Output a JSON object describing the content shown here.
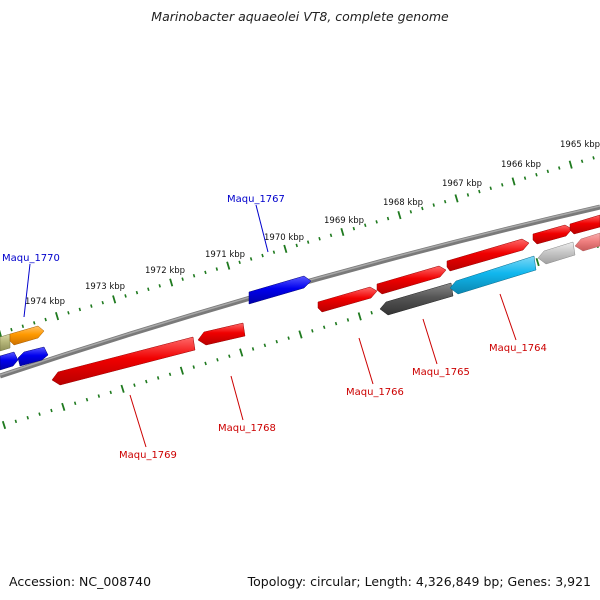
{
  "title": "Marinobacter aquaeolei VT8, complete genome",
  "footer": {
    "accession": "Accession: NC_008740",
    "summary": "Topology: circular; Length: 4,326,849 bp; Genes: 3,921"
  },
  "colors": {
    "backbone": "#7a7a7a",
    "tick": "#1f7a1f",
    "forward_label": "#0000cc",
    "reverse_label": "#cc0000",
    "red_gene": "#f00000",
    "blue_gene": "#0000ee",
    "dark_gene": "#555555",
    "cyan_gene": "#11b7ee",
    "orange_gene": "#ff9900",
    "olive_gene": "#b7b77a",
    "gray_gene": "#c8c8c8",
    "pink_gene": "#f08080"
  },
  "kbp_labels": [
    "1965 kbp",
    "1966 kbp",
    "1967 kbp",
    "1968 kbp",
    "1969 kbp",
    "1970 kbp",
    "1971 kbp",
    "1972 kbp",
    "1973 kbp",
    "1974 kbp"
  ],
  "gene_labels": [
    {
      "name": "Maqu_1770",
      "strand": "forward"
    },
    {
      "name": "Maqu_1767",
      "strand": "forward"
    },
    {
      "name": "Maqu_1769",
      "strand": "reverse"
    },
    {
      "name": "Maqu_1768",
      "strand": "reverse"
    },
    {
      "name": "Maqu_1766",
      "strand": "reverse"
    },
    {
      "name": "Maqu_1765",
      "strand": "reverse"
    },
    {
      "name": "Maqu_1764",
      "strand": "reverse"
    }
  ]
}
